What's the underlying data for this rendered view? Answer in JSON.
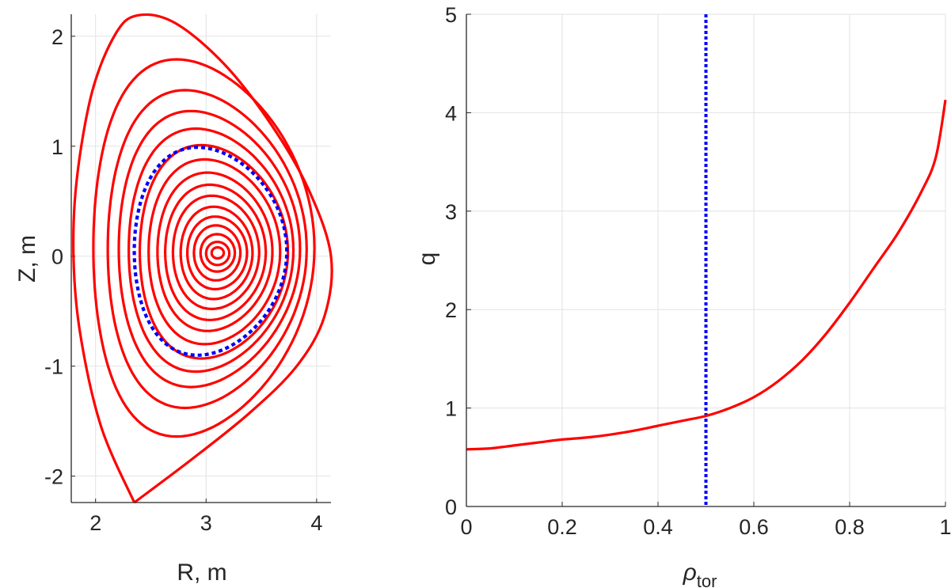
{
  "chart_data": [
    {
      "type": "line",
      "panel": "flux-surfaces",
      "title": "",
      "xlabel": "R, m",
      "ylabel": "Z, m",
      "xlim": [
        1.78,
        4.13
      ],
      "ylim": [
        -2.24,
        2.2
      ],
      "xticks": [
        2,
        3,
        4
      ],
      "yticks": [
        -2,
        -1,
        0,
        1,
        2
      ],
      "xtick_labels": [
        "2",
        "3",
        "4"
      ],
      "ytick_labels": [
        "-2",
        "-1",
        "0",
        "1",
        "2"
      ],
      "grid": true,
      "colors": {
        "surfaces": "#ff0000",
        "q1_surface": "#0000ff"
      },
      "magnetic_axis": {
        "R": 3.1,
        "Z": 0.03
      },
      "separatrix": {
        "R": [
          2.35,
          2.05,
          1.86,
          1.8,
          1.83,
          1.97,
          2.18,
          2.38,
          2.72,
          3.17,
          3.6,
          3.93,
          4.13,
          4.07,
          3.82,
          3.4,
          2.88,
          2.35
        ],
        "Z": [
          -2.24,
          -1.55,
          -0.7,
          0.0,
          0.7,
          1.5,
          2.02,
          2.19,
          2.12,
          1.74,
          1.18,
          0.6,
          0.0,
          -0.55,
          -1.0,
          -1.42,
          -1.84,
          -2.24
        ]
      },
      "flux_surfaces": [
        {
          "R_in": 1.98,
          "R_out": 3.98,
          "Z_top": 1.79,
          "Z_bot": -1.64
        },
        {
          "R_in": 2.11,
          "R_out": 3.91,
          "Z_top": 1.51,
          "Z_bot": -1.38
        },
        {
          "R_in": 2.21,
          "R_out": 3.85,
          "Z_top": 1.32,
          "Z_bot": -1.19
        },
        {
          "R_in": 2.3,
          "R_out": 3.79,
          "Z_top": 1.16,
          "Z_bot": -1.05
        },
        {
          "R_in": 2.4,
          "R_out": 3.74,
          "Z_top": 1.01,
          "Z_bot": -0.93
        },
        {
          "R_in": 2.48,
          "R_out": 3.67,
          "Z_top": 0.88,
          "Z_bot": -0.8
        },
        {
          "R_in": 2.56,
          "R_out": 3.6,
          "Z_top": 0.76,
          "Z_bot": -0.68
        },
        {
          "R_in": 2.63,
          "R_out": 3.54,
          "Z_top": 0.65,
          "Z_bot": -0.58
        },
        {
          "R_in": 2.7,
          "R_out": 3.48,
          "Z_top": 0.55,
          "Z_bot": -0.48
        },
        {
          "R_in": 2.77,
          "R_out": 3.42,
          "Z_top": 0.45,
          "Z_bot": -0.39
        },
        {
          "R_in": 2.83,
          "R_out": 3.37,
          "Z_top": 0.36,
          "Z_bot": -0.3
        },
        {
          "R_in": 2.89,
          "R_out": 3.31,
          "Z_top": 0.28,
          "Z_bot": -0.22
        },
        {
          "R_in": 2.95,
          "R_out": 3.26,
          "Z_top": 0.2,
          "Z_bot": -0.14
        },
        {
          "R_in": 3.0,
          "R_out": 3.21,
          "Z_top": 0.13,
          "Z_bot": -0.08
        },
        {
          "R_in": 3.05,
          "R_out": 3.16,
          "Z_top": 0.08,
          "Z_bot": -0.02
        }
      ],
      "q1_surface": {
        "R_in": 2.35,
        "R_out": 3.73,
        "Z_top": 0.99,
        "Z_bot": -0.9
      }
    },
    {
      "type": "line",
      "panel": "safety-factor",
      "title": "",
      "xlabel": "ρ",
      "xlabel_sub": "tor",
      "ylabel": "q",
      "xlim": [
        0,
        1
      ],
      "ylim": [
        0,
        5
      ],
      "xticks": [
        0,
        0.2,
        0.4,
        0.6,
        0.8,
        1
      ],
      "yticks": [
        0,
        1,
        2,
        3,
        4,
        5
      ],
      "xtick_labels": [
        "0",
        "0.2",
        "0.4",
        "0.6",
        "0.8",
        "1"
      ],
      "ytick_labels": [
        "0",
        "1",
        "2",
        "3",
        "4",
        "5"
      ],
      "grid": true,
      "series": [
        {
          "color": "#ff0000",
          "x": [
            0,
            0.05,
            0.1,
            0.15,
            0.2,
            0.25,
            0.3,
            0.35,
            0.4,
            0.45,
            0.5,
            0.55,
            0.6,
            0.65,
            0.7,
            0.75,
            0.8,
            0.85,
            0.9,
            0.95,
            0.98,
            1.0
          ],
          "y": [
            0.58,
            0.59,
            0.62,
            0.65,
            0.68,
            0.7,
            0.73,
            0.77,
            0.82,
            0.87,
            0.92,
            1.0,
            1.11,
            1.27,
            1.48,
            1.75,
            2.07,
            2.42,
            2.77,
            3.2,
            3.55,
            4.13
          ]
        }
      ],
      "vline": {
        "x": 0.5,
        "color": "#0000ff",
        "style": "dotted"
      }
    }
  ]
}
